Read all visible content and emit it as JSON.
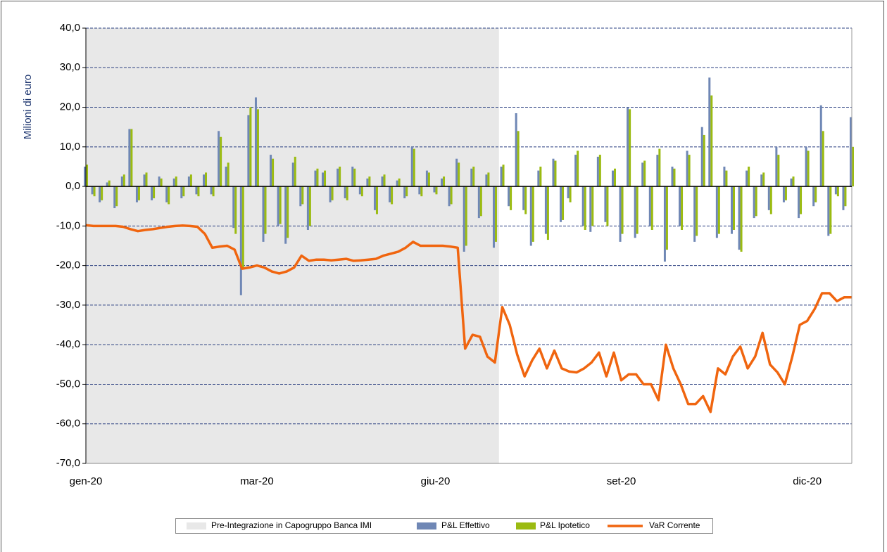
{
  "chart_data": {
    "type": "combo",
    "y_label": "Milioni di euro",
    "categories": [
      "gen-20",
      null,
      null,
      null,
      null,
      null,
      null,
      null,
      null,
      null,
      null,
      null,
      null,
      null,
      null,
      null,
      null,
      null,
      null,
      null,
      null,
      null,
      null,
      "mar-20",
      null,
      null,
      null,
      null,
      null,
      null,
      null,
      null,
      null,
      null,
      null,
      null,
      null,
      null,
      null,
      null,
      null,
      null,
      null,
      null,
      null,
      null,
      null,
      "giu-20",
      null,
      null,
      null,
      null,
      null,
      null,
      null,
      null,
      null,
      null,
      null,
      null,
      null,
      null,
      null,
      null,
      null,
      null,
      null,
      null,
      null,
      null,
      null,
      null,
      "set-20",
      null,
      null,
      null,
      null,
      null,
      null,
      null,
      null,
      null,
      null,
      null,
      null,
      null,
      null,
      null,
      null,
      null,
      null,
      null,
      null,
      null,
      null,
      null,
      null,
      "dic-20",
      null,
      null,
      null,
      null,
      null,
      null
    ],
    "ylim": [
      -70,
      40
    ],
    "yticks": [
      {
        "value": 40,
        "label": "40,0"
      },
      {
        "value": 30,
        "label": "30,0"
      },
      {
        "value": 20,
        "label": "20,0"
      },
      {
        "value": 10,
        "label": "10,0"
      },
      {
        "value": 0,
        "label": "0,0"
      },
      {
        "value": -10,
        "label": "-10,0"
      },
      {
        "value": -20,
        "label": "-20,0"
      },
      {
        "value": -30,
        "label": "-30,0"
      },
      {
        "value": -40,
        "label": "-40,0"
      },
      {
        "value": -50,
        "label": "-50,0"
      },
      {
        "value": -60,
        "label": "-60,0"
      },
      {
        "value": -70,
        "label": "-70,0"
      }
    ],
    "grid": true,
    "legend": "bottom",
    "series": [
      {
        "name": "Pre-Integrazione in Capogruppo Banca IMI",
        "type": "area",
        "color": "#e8e8e8",
        "values": [
          40,
          40,
          40,
          40,
          40,
          40,
          40,
          40,
          40,
          40,
          40,
          40,
          40,
          40,
          40,
          40,
          40,
          40,
          40,
          40,
          40,
          40,
          40,
          40,
          40,
          40,
          40,
          40,
          40,
          40,
          40,
          40,
          40,
          40,
          40,
          40,
          40,
          40,
          40,
          40,
          40,
          40,
          40,
          40,
          40,
          40,
          40,
          40,
          40,
          40,
          40,
          40,
          40,
          40,
          40,
          40,
          null,
          null,
          null,
          null,
          null,
          null,
          null,
          null,
          null,
          null,
          null,
          null,
          null,
          null,
          null,
          null,
          null,
          null,
          null,
          null,
          null,
          null,
          null,
          null,
          null,
          null,
          null,
          null,
          null,
          null,
          null,
          null,
          null,
          null,
          null,
          null,
          null,
          null,
          null,
          null,
          null,
          null,
          null,
          null,
          null,
          null,
          null,
          null
        ]
      },
      {
        "name": "P&L Effettivo",
        "type": "bar",
        "color": "#6f87b5",
        "values": [
          5,
          -2,
          -4,
          1,
          -5.5,
          2.5,
          14.5,
          -4,
          3,
          -3.5,
          2.5,
          -4,
          2,
          -3,
          2.5,
          -2,
          3,
          -2,
          14,
          5,
          -10.5,
          -27.5,
          18,
          22.5,
          -14,
          8,
          -10,
          -14.5,
          6,
          -5,
          -11,
          4,
          3.5,
          -4,
          4.5,
          -3,
          5,
          -2,
          2,
          -6,
          2.5,
          -4,
          1.5,
          -3,
          10,
          -2,
          4,
          -1.5,
          2,
          -5,
          7,
          -16.5,
          4.5,
          -8,
          3,
          -15.5,
          5,
          -5,
          18.5,
          -6,
          -15,
          4,
          -12,
          7,
          -9,
          -3,
          8,
          -10,
          -11.5,
          7.5,
          -9,
          4,
          -14,
          20,
          -13,
          6,
          -10,
          8,
          -19,
          5,
          -10,
          9,
          -14,
          15,
          27.5,
          -13,
          5,
          -12,
          -16,
          4,
          -8,
          3,
          -6,
          10,
          -4,
          2,
          -8,
          10,
          -5,
          20.5,
          -12.5,
          -2,
          -6,
          17.5
        ]
      },
      {
        "name": "P&L Ipotetico",
        "type": "bar",
        "color": "#9bbb11",
        "values": [
          5.5,
          -2.5,
          -3.5,
          1.5,
          -5,
          3,
          14.5,
          -3.5,
          3.5,
          -3,
          2,
          -4.5,
          2.5,
          -2.5,
          3,
          -2.5,
          3.5,
          -2.5,
          12.5,
          6,
          -12,
          -21,
          20,
          19.5,
          -12,
          7,
          -9.5,
          -13,
          7.5,
          -4.5,
          -10,
          4.5,
          4,
          -3.5,
          5,
          -3.5,
          4.5,
          -2.5,
          2.5,
          -7,
          3,
          -4.5,
          2,
          -2.5,
          9.5,
          -2.5,
          3.5,
          -2,
          2.5,
          -4.5,
          6,
          -15,
          5,
          -7.5,
          3.5,
          -14,
          5.5,
          -6,
          14,
          -7,
          -14,
          5,
          -13.5,
          6.5,
          -8.5,
          -4,
          9,
          -11,
          -10,
          8,
          -10,
          4.5,
          -12,
          19.5,
          -12,
          6.5,
          -11,
          9.5,
          -16,
          4.5,
          -11,
          8,
          -12.5,
          13,
          23,
          -12,
          4,
          -11,
          -16.5,
          5,
          -7.5,
          3.5,
          -7,
          8,
          -3.5,
          2.5,
          -7,
          9,
          -4,
          14,
          -12,
          -2.5,
          -5,
          10
        ]
      },
      {
        "name": "VaR Corrente",
        "type": "line",
        "color": "#f0650f",
        "values": [
          -9.8,
          -10,
          -10,
          -10,
          -10,
          -10.2,
          -10.8,
          -11.3,
          -11,
          -10.8,
          -10.5,
          -10.2,
          -10,
          -9.9,
          -10,
          -10.2,
          -12,
          -15.5,
          -15.2,
          -15,
          -16,
          -20.8,
          -20.5,
          -20,
          -20.5,
          -21.5,
          -22,
          -21.5,
          -20.5,
          -17.5,
          -18.8,
          -18.5,
          -18.5,
          -18.7,
          -18.5,
          -18.3,
          -18.8,
          -18.7,
          -18.5,
          -18.3,
          -17.5,
          -17,
          -16.5,
          -15.5,
          -14,
          -15,
          -15,
          -15,
          -15,
          -15.2,
          -15.5,
          -41,
          -37.5,
          -38,
          -43,
          -44.5,
          -30.5,
          -35,
          -42.5,
          -48,
          -44,
          -41,
          -46,
          -41.5,
          -46,
          -46.8,
          -47,
          -46,
          -44.5,
          -42,
          -48,
          -42,
          -49,
          -47.5,
          -47.5,
          -50,
          -50,
          -54,
          -40,
          -46,
          -50,
          -55,
          -55,
          -53,
          -57,
          -46,
          -47.5,
          -43,
          -40.5,
          -46,
          -43,
          -37,
          -45,
          -47,
          -50,
          -43,
          -35,
          -34,
          -31,
          -27,
          -27,
          -29,
          -28,
          -28
        ]
      }
    ]
  }
}
